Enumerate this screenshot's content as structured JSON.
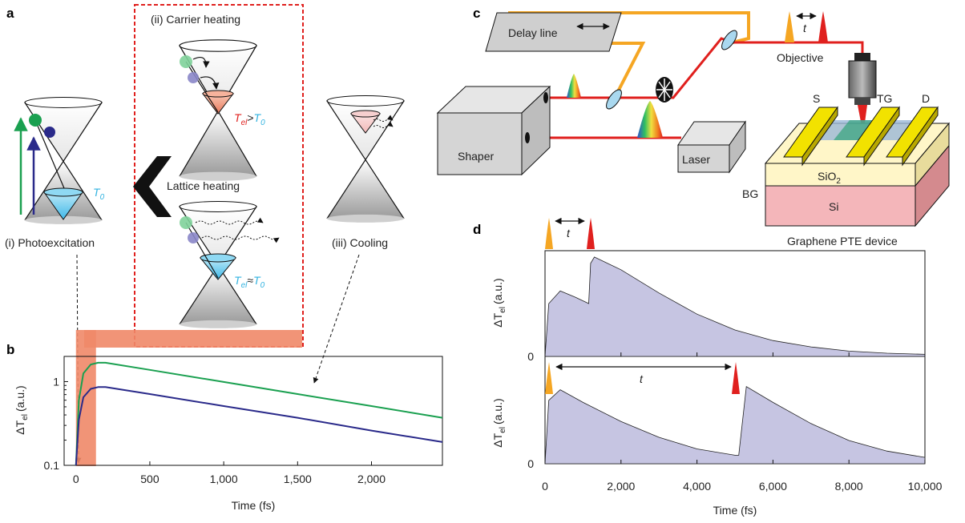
{
  "panels": {
    "a": {
      "letter": "a",
      "photoexcitation": "(i) Photoexcitation",
      "carrier_heating": "(ii) Carrier heating",
      "lattice_heating": "Lattice heating",
      "cooling": "(iii) Cooling",
      "T0": "T",
      "T0_sub": "0",
      "Tel": "T",
      "Tel_sub": "el",
      "gt": ">",
      "approx": "≈"
    },
    "b": {
      "letter": "b",
      "ylabel_delta": "ΔT",
      "ylabel_sub": "el",
      "ylabel_unit": "(a.u.)",
      "xlabel": "Time (fs)"
    },
    "c": {
      "letter": "c",
      "delay_line": "Delay line",
      "shaper": "Shaper",
      "laser": "Laser",
      "objective": "Objective",
      "t": "t",
      "S": "S",
      "TG": "TG",
      "D": "D",
      "sio2": "SiO",
      "sio2_sub": "2",
      "si": "Si",
      "bg": "BG",
      "device": "Graphene PTE device"
    },
    "d": {
      "letter": "d",
      "t_top": "t",
      "t_bottom": "t",
      "ylabel_delta": "ΔT",
      "ylabel_sub": "el",
      "ylabel_unit": "(a.u.)",
      "xlabel": "Time (fs)"
    }
  },
  "colors": {
    "green": "#1aa050",
    "blue": "#2a2a8a",
    "red": "#e0201e",
    "orange": "#f5a623",
    "salmon": "#f08868",
    "lavender": "#c6c5e2",
    "cyan": "#7ad3f0"
  },
  "chart_data": [
    {
      "type": "line",
      "panel": "b",
      "xlim": [
        -80,
        2480
      ],
      "ylim": [
        0.1,
        2
      ],
      "yscale": "log",
      "xticks": [
        0,
        500,
        1000,
        1500,
        2000
      ],
      "xtick_labels": [
        "0",
        "500",
        "1,000",
        "1,500",
        "2,000"
      ],
      "yticks": [
        0.1,
        1
      ],
      "ytick_labels": [
        "0.1",
        "1"
      ],
      "series": [
        {
          "color": "green",
          "x": [
            0,
            20,
            50,
            100,
            150,
            200,
            500,
            1000,
            1500,
            2000,
            2480
          ],
          "y": [
            0.1,
            0.6,
            1.25,
            1.6,
            1.68,
            1.68,
            1.38,
            0.99,
            0.71,
            0.51,
            0.37
          ]
        },
        {
          "color": "blue",
          "x": [
            0,
            20,
            50,
            100,
            150,
            200,
            500,
            1000,
            1500,
            2000,
            2480
          ],
          "y": [
            0.1,
            0.35,
            0.65,
            0.82,
            0.86,
            0.86,
            0.71,
            0.51,
            0.37,
            0.26,
            0.19
          ]
        }
      ]
    },
    {
      "type": "area",
      "panel": "d-top",
      "xlim": [
        0,
        10000
      ],
      "xticks": [
        0,
        2000,
        4000,
        6000,
        8000,
        10000
      ],
      "ytick_labels": [
        "0"
      ],
      "series": [
        {
          "x": [
            0,
            100,
            400,
            800,
            1150,
            1200,
            1300,
            2000,
            3000,
            4000,
            5000,
            6000,
            7000,
            8000,
            9000,
            10000
          ],
          "y": [
            0,
            0.5,
            0.62,
            0.56,
            0.5,
            0.88,
            0.94,
            0.82,
            0.6,
            0.4,
            0.25,
            0.15,
            0.09,
            0.05,
            0.03,
            0.02
          ]
        }
      ]
    },
    {
      "type": "area",
      "panel": "d-bottom",
      "xlim": [
        0,
        10000
      ],
      "xticks": [
        0,
        2000,
        4000,
        6000,
        8000,
        10000
      ],
      "xtick_labels": [
        "0",
        "2,000",
        "4,000",
        "6,000",
        "8,000",
        "10,000"
      ],
      "ytick_labels": [
        "0"
      ],
      "series": [
        {
          "x": [
            0,
            100,
            400,
            1000,
            2000,
            3000,
            4000,
            5000,
            5100,
            5300,
            6000,
            7000,
            8000,
            9000,
            10000
          ],
          "y": [
            0,
            0.6,
            0.7,
            0.58,
            0.4,
            0.25,
            0.14,
            0.08,
            0.08,
            0.73,
            0.58,
            0.38,
            0.22,
            0.12,
            0.06
          ]
        }
      ]
    }
  ]
}
